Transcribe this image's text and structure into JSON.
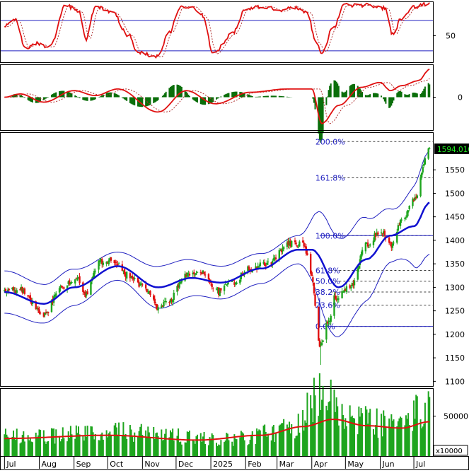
{
  "chart_data": {
    "type": "candlestick",
    "x_axis": {
      "labels": [
        "Jul",
        "Aug",
        "Sep",
        "Oct",
        "Nov",
        "Dec",
        "2025",
        "Feb",
        "Mar",
        "Apr",
        "May",
        "Jun",
        "Jul"
      ]
    },
    "colors": {
      "up": "#1ea51e",
      "down": "#e01010",
      "ma": "#1010d0",
      "band": "#2020c0",
      "volume": "#1ea51e",
      "volume_ma": "#e01010",
      "rsi": "#e01010",
      "macd": "#e01010"
    },
    "rsi_panel": {
      "tick_labels": [
        "50"
      ],
      "levels": [
        70,
        30
      ],
      "ylim": [
        15,
        95
      ],
      "key_points": [
        {
          "date": "2024-07-01",
          "v": 62
        },
        {
          "date": "2024-07-10",
          "v": 72
        },
        {
          "date": "2024-07-20",
          "v": 34
        },
        {
          "date": "2024-07-28",
          "v": 40
        },
        {
          "date": "2024-08-10",
          "v": 35
        },
        {
          "date": "2024-08-25",
          "v": 90
        },
        {
          "date": "2024-09-05",
          "v": 82
        },
        {
          "date": "2024-09-12",
          "v": 45
        },
        {
          "date": "2024-09-20",
          "v": 88
        },
        {
          "date": "2024-10-05",
          "v": 80
        },
        {
          "date": "2024-10-20",
          "v": 50
        },
        {
          "date": "2024-10-28",
          "v": 27
        },
        {
          "date": "2024-11-15",
          "v": 22
        },
        {
          "date": "2024-11-25",
          "v": 55
        },
        {
          "date": "2024-12-05",
          "v": 88
        },
        {
          "date": "2024-12-15",
          "v": 88
        },
        {
          "date": "2024-12-25",
          "v": 76
        },
        {
          "date": "2025-01-03",
          "v": 26
        },
        {
          "date": "2025-01-20",
          "v": 52
        },
        {
          "date": "2025-02-01",
          "v": 86
        },
        {
          "date": "2025-02-20",
          "v": 88
        },
        {
          "date": "2025-03-05",
          "v": 82
        },
        {
          "date": "2025-03-15",
          "v": 88
        },
        {
          "date": "2025-03-28",
          "v": 80
        },
        {
          "date": "2025-04-05",
          "v": 40
        },
        {
          "date": "2025-04-10",
          "v": 28
        },
        {
          "date": "2025-04-20",
          "v": 60
        },
        {
          "date": "2025-04-30",
          "v": 90
        },
        {
          "date": "2025-05-20",
          "v": 90
        },
        {
          "date": "2025-06-05",
          "v": 86
        },
        {
          "date": "2025-06-12",
          "v": 52
        },
        {
          "date": "2025-06-20",
          "v": 72
        },
        {
          "date": "2025-07-01",
          "v": 88
        },
        {
          "date": "2025-07-15",
          "v": 92
        }
      ]
    },
    "macd_panel": {
      "tick_labels": [
        "0"
      ],
      "ylim": [
        -40,
        40
      ],
      "key_points": [
        {
          "date": "2024-07-01",
          "v": 0
        },
        {
          "date": "2024-07-15",
          "v": 4
        },
        {
          "date": "2024-08-05",
          "v": -6
        },
        {
          "date": "2024-09-01",
          "v": 8
        },
        {
          "date": "2024-09-20",
          "v": 2
        },
        {
          "date": "2024-10-10",
          "v": 10
        },
        {
          "date": "2024-11-15",
          "v": -18
        },
        {
          "date": "2024-12-10",
          "v": 8
        },
        {
          "date": "2025-01-05",
          "v": -8
        },
        {
          "date": "2025-02-05",
          "v": 6
        },
        {
          "date": "2025-03-10",
          "v": 10
        },
        {
          "date": "2025-04-01",
          "v": 10
        },
        {
          "date": "2025-04-10",
          "v": -32
        },
        {
          "date": "2025-04-25",
          "v": -10
        },
        {
          "date": "2025-05-15",
          "v": 12
        },
        {
          "date": "2025-06-01",
          "v": 18
        },
        {
          "date": "2025-06-10",
          "v": 8
        },
        {
          "date": "2025-06-20",
          "v": 14
        },
        {
          "date": "2025-07-05",
          "v": 20
        },
        {
          "date": "2025-07-15",
          "v": 34
        }
      ]
    },
    "price_panel": {
      "tick_labels": [
        "1550",
        "1500",
        "1450",
        "1400",
        "1350",
        "1300",
        "1250",
        "1200",
        "1150",
        "1100"
      ],
      "ylim": [
        1090,
        1630
      ],
      "last_price_label": "1594.010",
      "fibonacci": [
        {
          "label": "200.0%",
          "price": 1610
        },
        {
          "label": "161.8%",
          "price": 1533
        },
        {
          "label": "100.0%",
          "price": 1410
        },
        {
          "label": "61.8%",
          "price": 1336
        },
        {
          "label": "50.0%",
          "price": 1313
        },
        {
          "label": "38.2%",
          "price": 1290
        },
        {
          "label": "23.6%",
          "price": 1262
        },
        {
          "label": "0.0%",
          "price": 1217
        }
      ],
      "close_key_points": [
        {
          "date": "2024-07-01",
          "v": 1290
        },
        {
          "date": "2024-07-15",
          "v": 1295
        },
        {
          "date": "2024-08-05",
          "v": 1240
        },
        {
          "date": "2024-08-20",
          "v": 1300
        },
        {
          "date": "2024-09-05",
          "v": 1315
        },
        {
          "date": "2024-09-10",
          "v": 1285
        },
        {
          "date": "2024-09-25",
          "v": 1355
        },
        {
          "date": "2024-10-05",
          "v": 1360
        },
        {
          "date": "2024-10-20",
          "v": 1325
        },
        {
          "date": "2024-11-05",
          "v": 1295
        },
        {
          "date": "2024-11-15",
          "v": 1255
        },
        {
          "date": "2024-11-25",
          "v": 1275
        },
        {
          "date": "2024-12-10",
          "v": 1325
        },
        {
          "date": "2024-12-25",
          "v": 1330
        },
        {
          "date": "2025-01-08",
          "v": 1290
        },
        {
          "date": "2025-01-20",
          "v": 1310
        },
        {
          "date": "2025-02-05",
          "v": 1340
        },
        {
          "date": "2025-02-25",
          "v": 1355
        },
        {
          "date": "2025-03-10",
          "v": 1395
        },
        {
          "date": "2025-03-25",
          "v": 1390
        },
        {
          "date": "2025-04-01",
          "v": 1320
        },
        {
          "date": "2025-04-08",
          "v": 1175
        },
        {
          "date": "2025-04-15",
          "v": 1220
        },
        {
          "date": "2025-04-22",
          "v": 1280
        },
        {
          "date": "2025-05-05",
          "v": 1300
        },
        {
          "date": "2025-05-20",
          "v": 1390
        },
        {
          "date": "2025-06-01",
          "v": 1420
        },
        {
          "date": "2025-06-10",
          "v": 1390
        },
        {
          "date": "2025-06-20",
          "v": 1440
        },
        {
          "date": "2025-07-01",
          "v": 1490
        },
        {
          "date": "2025-07-15",
          "v": 1594
        }
      ],
      "ma_key_points": [
        {
          "date": "2024-07-01",
          "v": 1290
        },
        {
          "date": "2024-08-05",
          "v": 1265
        },
        {
          "date": "2024-09-01",
          "v": 1300
        },
        {
          "date": "2024-10-10",
          "v": 1345
        },
        {
          "date": "2024-11-15",
          "v": 1300
        },
        {
          "date": "2024-12-15",
          "v": 1320
        },
        {
          "date": "2025-01-10",
          "v": 1310
        },
        {
          "date": "2025-02-15",
          "v": 1340
        },
        {
          "date": "2025-03-20",
          "v": 1380
        },
        {
          "date": "2025-04-01",
          "v": 1380
        },
        {
          "date": "2025-04-25",
          "v": 1300
        },
        {
          "date": "2025-05-20",
          "v": 1360
        },
        {
          "date": "2025-06-10",
          "v": 1410
        },
        {
          "date": "2025-07-01",
          "v": 1430
        },
        {
          "date": "2025-07-15",
          "v": 1480
        }
      ],
      "band_width_key_points": [
        {
          "date": "2024-07-01",
          "v": 45
        },
        {
          "date": "2024-08-20",
          "v": 40
        },
        {
          "date": "2024-10-10",
          "v": 30
        },
        {
          "date": "2024-11-20",
          "v": 45
        },
        {
          "date": "2025-01-01",
          "v": 35
        },
        {
          "date": "2025-03-20",
          "v": 30
        },
        {
          "date": "2025-04-15",
          "v": 110
        },
        {
          "date": "2025-05-10",
          "v": 95
        },
        {
          "date": "2025-06-15",
          "v": 55
        },
        {
          "date": "2025-07-15",
          "v": 110
        }
      ]
    },
    "volume_panel": {
      "tick_labels": [
        "50000"
      ],
      "multiplier_label": "x10000",
      "ylim": [
        0,
        85000
      ],
      "level_key_points": [
        {
          "date": "2024-07-01",
          "v": 24000
        },
        {
          "date": "2024-09-10",
          "v": 28000
        },
        {
          "date": "2024-10-20",
          "v": 30000
        },
        {
          "date": "2025-01-10",
          "v": 20000
        },
        {
          "date": "2025-03-15",
          "v": 34000
        },
        {
          "date": "2025-04-08",
          "v": 75000
        },
        {
          "date": "2025-05-10",
          "v": 45000
        },
        {
          "date": "2025-06-15",
          "v": 38000
        },
        {
          "date": "2025-07-15",
          "v": 62000
        }
      ],
      "ma_key_points": [
        {
          "date": "2024-07-01",
          "v": 22000
        },
        {
          "date": "2024-10-01",
          "v": 26000
        },
        {
          "date": "2024-12-20",
          "v": 20000
        },
        {
          "date": "2025-02-15",
          "v": 26000
        },
        {
          "date": "2025-03-25",
          "v": 37000
        },
        {
          "date": "2025-04-20",
          "v": 46000
        },
        {
          "date": "2025-05-20",
          "v": 38000
        },
        {
          "date": "2025-06-20",
          "v": 35000
        },
        {
          "date": "2025-07-15",
          "v": 43000
        }
      ]
    }
  }
}
